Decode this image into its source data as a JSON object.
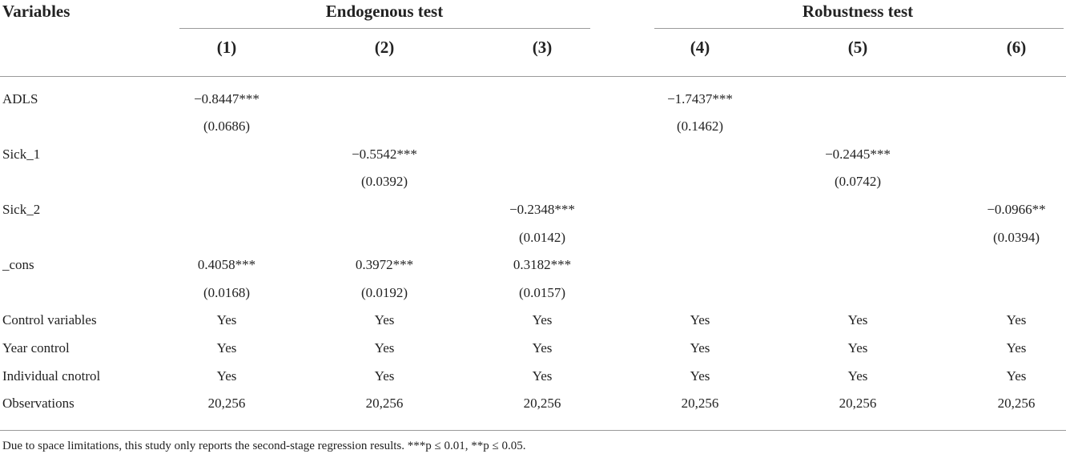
{
  "table": {
    "header": {
      "variables_label": "Variables",
      "groups": [
        {
          "label": "Endogenous test"
        },
        {
          "label": "Robustness test"
        }
      ],
      "columns": [
        "(1)",
        "(2)",
        "(3)",
        "(4)",
        "(5)",
        "(6)"
      ]
    },
    "rows": [
      {
        "label": "ADLS",
        "cells": [
          "−0.8447***",
          "",
          "",
          "−1.7437***",
          "",
          ""
        ]
      },
      {
        "label": "",
        "cells": [
          "(0.0686)",
          "",
          "",
          "(0.1462)",
          "",
          ""
        ]
      },
      {
        "label": "Sick_1",
        "cells": [
          "",
          "−0.5542***",
          "",
          "",
          "−0.2445***",
          ""
        ]
      },
      {
        "label": "",
        "cells": [
          "",
          "(0.0392)",
          "",
          "",
          "(0.0742)",
          ""
        ]
      },
      {
        "label": "Sick_2",
        "cells": [
          "",
          "",
          "−0.2348***",
          "",
          "",
          "−0.0966**"
        ]
      },
      {
        "label": "",
        "cells": [
          "",
          "",
          "(0.0142)",
          "",
          "",
          "(0.0394)"
        ]
      },
      {
        "label": "_cons",
        "cells": [
          "0.4058***",
          "0.3972***",
          "0.3182***",
          "",
          "",
          ""
        ]
      },
      {
        "label": "",
        "cells": [
          "(0.0168)",
          "(0.0192)",
          "(0.0157)",
          "",
          "",
          ""
        ]
      },
      {
        "label": "Control variables",
        "cells": [
          "Yes",
          "Yes",
          "Yes",
          "Yes",
          "Yes",
          "Yes"
        ]
      },
      {
        "label": "Year control",
        "cells": [
          "Yes",
          "Yes",
          "Yes",
          "Yes",
          "Yes",
          "Yes"
        ]
      },
      {
        "label": "Individual cnotrol",
        "cells": [
          "Yes",
          "Yes",
          "Yes",
          "Yes",
          "Yes",
          "Yes"
        ]
      },
      {
        "label": "Observations",
        "cells": [
          "20,256",
          "20,256",
          "20,256",
          "20,256",
          "20,256",
          "20,256"
        ]
      }
    ],
    "note": "Due to space limitations, this study only reports the second-stage regression results. ***p ≤ 0.01, **p ≤ 0.05."
  }
}
